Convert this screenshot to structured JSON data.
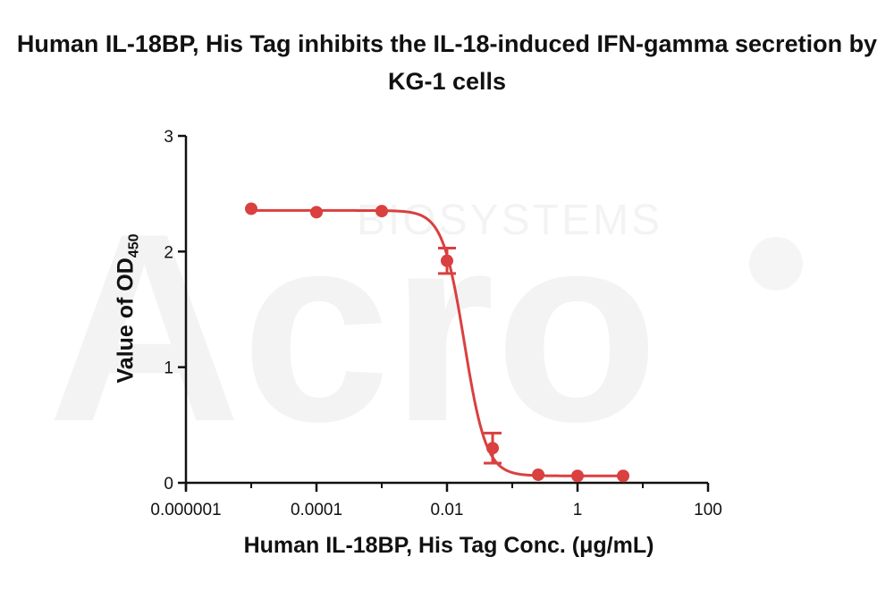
{
  "chart_data": {
    "type": "scatter",
    "title": "Human IL-18BP, His Tag inhibits the IL-18-induced IFN-gamma secretion by KG-1 cells",
    "xlabel": "Human IL-18BP, His Tag Conc. (μg/mL)",
    "ylabel": "Value of OD",
    "ylabel_sub": "450",
    "x_scale": "log",
    "xlim": [
      1e-06,
      100
    ],
    "ylim": [
      0,
      3
    ],
    "x_ticks": [
      {
        "value": 1e-06,
        "label": "0.000001"
      },
      {
        "value": 0.0001,
        "label": "0.0001"
      },
      {
        "value": 0.01,
        "label": "0.01"
      },
      {
        "value": 1,
        "label": "1"
      },
      {
        "value": 100,
        "label": "100"
      }
    ],
    "y_ticks": [
      {
        "value": 0,
        "label": "0"
      },
      {
        "value": 1,
        "label": "1"
      },
      {
        "value": 2,
        "label": "2"
      },
      {
        "value": 3,
        "label": "3"
      }
    ],
    "series": [
      {
        "color": "#d9403f",
        "points": [
          {
            "x": 1e-05,
            "y": 2.37,
            "err": 0
          },
          {
            "x": 0.0001,
            "y": 2.34,
            "err": 0
          },
          {
            "x": 0.001,
            "y": 2.35,
            "err": 0
          },
          {
            "x": 0.01,
            "y": 1.92,
            "err": 0.11
          },
          {
            "x": 0.05,
            "y": 0.3,
            "err": 0.13
          },
          {
            "x": 0.25,
            "y": 0.07,
            "err": 0
          },
          {
            "x": 1,
            "y": 0.06,
            "err": 0
          },
          {
            "x": 5,
            "y": 0.06,
            "err": 0
          }
        ],
        "fit": {
          "model": "four-parameter logistic",
          "top": 2.355,
          "bottom": 0.06,
          "ec50": 0.0185,
          "hill": 2.6
        }
      }
    ],
    "watermark": "ACRO BIOSYSTEMS"
  }
}
